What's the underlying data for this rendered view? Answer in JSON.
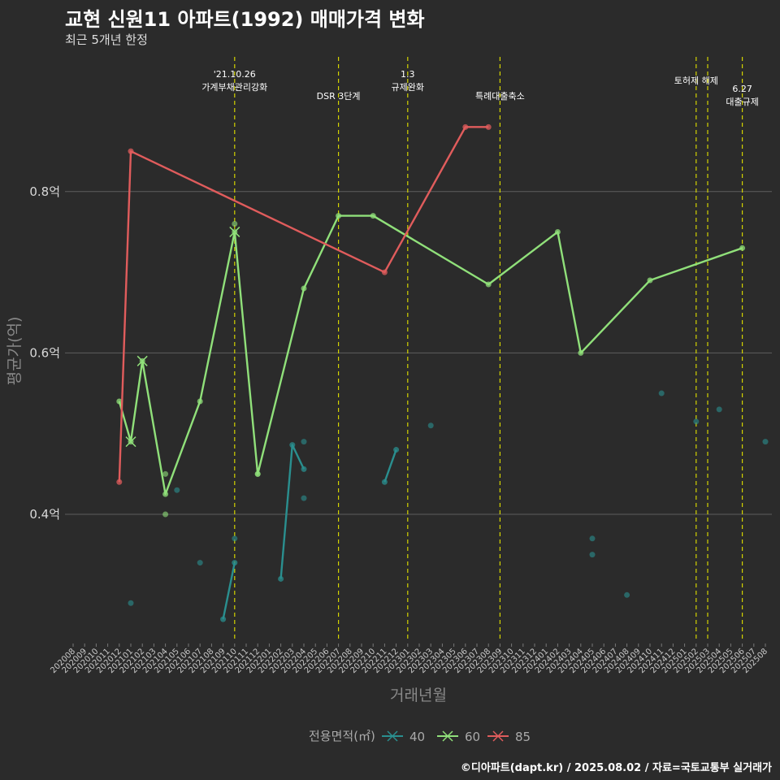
{
  "header": {
    "title": "교현 신원11 아파트(1992) 매매가격 변화",
    "subtitle": "최근 5개년 한정",
    "caption": "©디아파트(dapt.kr) / 2025.08.02 / 자료=국토교통부 실거래가"
  },
  "chart_data": {
    "type": "line",
    "title": "교현 신원11 아파트(1992) 매매가격 변화",
    "subtitle": "최근 5개년 한정",
    "xlabel": "거래년월",
    "ylabel": "평균가(억)",
    "ylim": [
      0.24,
      1.0
    ],
    "y_ticks": [
      0.4,
      0.6,
      0.8
    ],
    "y_tick_labels": [
      "0.4억",
      "0.6억",
      "0.8억"
    ],
    "x_labels": [
      "202008",
      "202009",
      "202010",
      "202011",
      "202012",
      "202101",
      "202102",
      "202103",
      "202104",
      "202105",
      "202106",
      "202107",
      "202108",
      "202109",
      "202110",
      "202111",
      "202112",
      "202201",
      "202202",
      "202203",
      "202204",
      "202205",
      "202206",
      "202207",
      "202208",
      "202209",
      "202210",
      "202211",
      "202212",
      "202301",
      "202302",
      "202303",
      "202304",
      "202305",
      "202306",
      "202307",
      "202308",
      "202309",
      "202310",
      "202311",
      "202312",
      "202401",
      "202402",
      "202403",
      "202404",
      "202405",
      "202406",
      "202407",
      "202408",
      "202409",
      "202410",
      "202411",
      "202412",
      "202501",
      "202502",
      "202503",
      "202504",
      "202505",
      "202506",
      "202507",
      "202508"
    ],
    "legend_title": "전용면적(㎡)",
    "legend_position": "bottom",
    "grid": "horizontal",
    "series": [
      {
        "name": "40",
        "color": "#2a8f8f",
        "segments": [
          [
            [
              "202109",
              0.27
            ],
            [
              "202110",
              0.34
            ]
          ],
          [
            [
              "202202",
              0.32
            ],
            [
              "202203",
              0.486
            ],
            [
              "202204",
              0.456
            ]
          ],
          [
            [
              "202211",
              0.44
            ],
            [
              "202212",
              0.48
            ]
          ]
        ],
        "points": [
          [
            "202101",
            0.29
          ],
          [
            "202105",
            0.43
          ],
          [
            "202107",
            0.34
          ],
          [
            "202110",
            0.37
          ],
          [
            "202204",
            0.49
          ],
          [
            "202204",
            0.42
          ],
          [
            "202303",
            0.51
          ],
          [
            "202405",
            0.37
          ],
          [
            "202405",
            0.35
          ],
          [
            "202408",
            0.3
          ],
          [
            "202411",
            0.55
          ],
          [
            "202502",
            0.515
          ],
          [
            "202504",
            0.53
          ],
          [
            "202508",
            0.49
          ]
        ]
      },
      {
        "name": "60",
        "color": "#90e07a",
        "segments": [
          [
            [
              "202012",
              0.54
            ],
            [
              "202101",
              0.49
            ],
            [
              "202102",
              0.59
            ],
            [
              "202104",
              0.425
            ],
            [
              "202107",
              0.54
            ],
            [
              "202110",
              0.75
            ],
            [
              "202112",
              0.45
            ],
            [
              "202204",
              0.68
            ],
            [
              "202207",
              0.77
            ],
            [
              "202210",
              0.77
            ],
            [
              "202308",
              0.685
            ],
            [
              "202402",
              0.75
            ],
            [
              "202404",
              0.6
            ],
            [
              "202410",
              0.69
            ],
            [
              "202506",
              0.73
            ]
          ]
        ],
        "points": [
          [
            "202104",
            0.45
          ],
          [
            "202104",
            0.4
          ],
          [
            "202110",
            0.76
          ],
          [
            "202112",
            0.45
          ]
        ],
        "x_markers": [
          [
            "202101",
            0.49
          ],
          [
            "202102",
            0.59
          ],
          [
            "202110",
            0.75
          ]
        ]
      },
      {
        "name": "85",
        "color": "#e05c5c",
        "segments": [
          [
            [
              "202012",
              0.44
            ],
            [
              "202101",
              0.85
            ],
            [
              "202211",
              0.7
            ],
            [
              "202306",
              0.88
            ],
            [
              "202308",
              0.88
            ]
          ]
        ],
        "points": []
      }
    ],
    "events": [
      {
        "x": "202110",
        "lines": [
          "'21.10.26",
          "가계부채관리강화"
        ]
      },
      {
        "x": "202207",
        "lines": [
          "DSR 3단계"
        ]
      },
      {
        "x": "202301",
        "lines": [
          "1.3",
          "규제완화"
        ]
      },
      {
        "x": "202309",
        "lines": [
          "특례대출축소"
        ]
      },
      {
        "x": "202502",
        "lines": [
          "토허제 해제"
        ]
      },
      {
        "x": "202503",
        "lines": [
          ""
        ]
      },
      {
        "x": "202506",
        "lines": [
          "6.27",
          "대출규제"
        ]
      }
    ]
  }
}
